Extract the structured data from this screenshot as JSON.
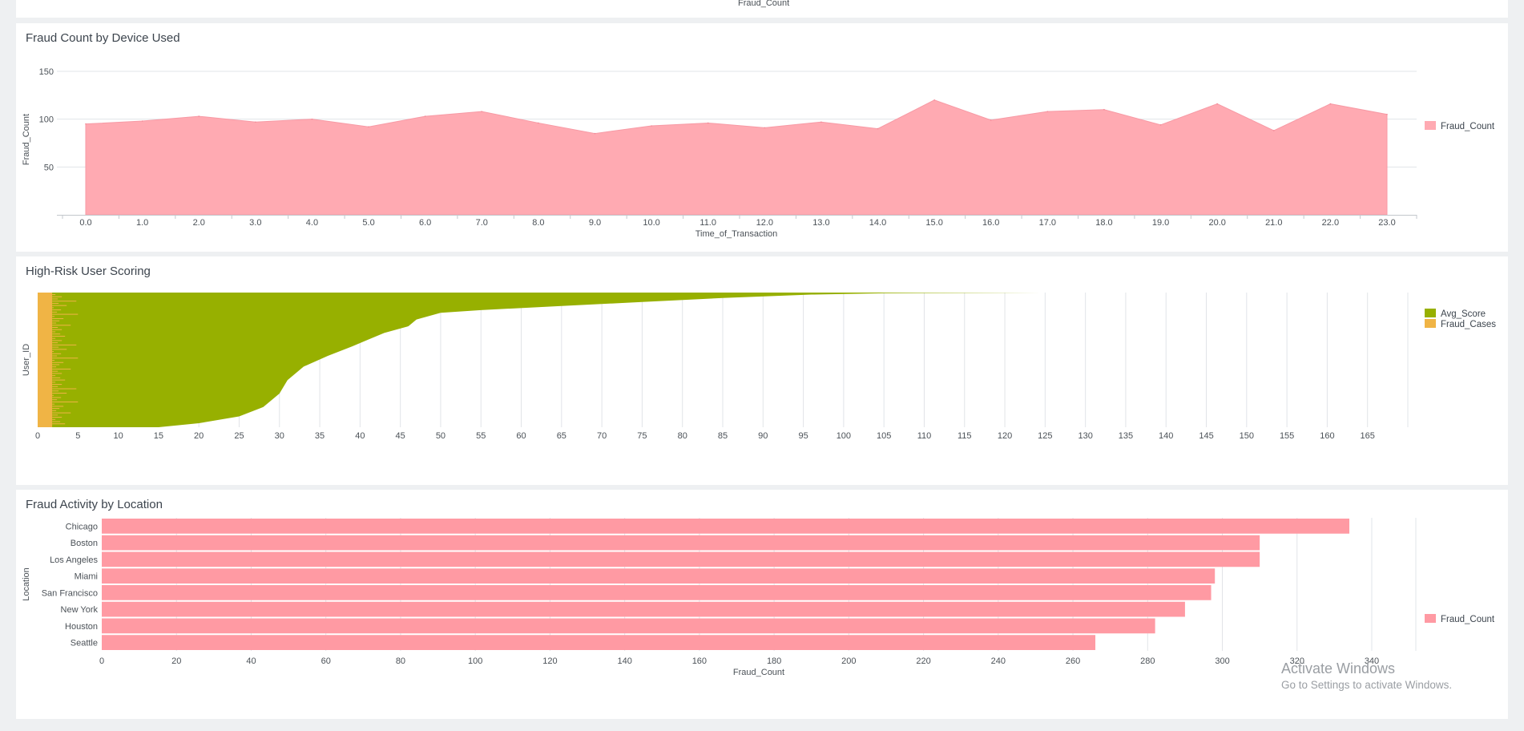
{
  "top_fragment": {
    "axis_label": "Fraud_Count"
  },
  "panels": [
    {
      "title": "Fraud Count by Device Used",
      "chart_data": {
        "type": "area",
        "title": "Fraud Count by Device Used",
        "xlabel": "Time_of_Transaction",
        "ylabel": "Fraud_Count",
        "x": [
          0,
          1,
          2,
          3,
          4,
          5,
          6,
          7,
          8,
          9,
          10,
          11,
          12,
          13,
          14,
          15,
          16,
          17,
          18,
          19,
          20,
          21,
          22,
          23
        ],
        "x_tick_labels": [
          "0.0",
          "1.0",
          "2.0",
          "3.0",
          "4.0",
          "5.0",
          "6.0",
          "7.0",
          "8.0",
          "9.0",
          "10.0",
          "11.0",
          "12.0",
          "13.0",
          "14.0",
          "15.0",
          "16.0",
          "17.0",
          "18.0",
          "19.0",
          "20.0",
          "21.0",
          "22.0",
          "23.0"
        ],
        "series": [
          {
            "name": "Fraud_Count",
            "color": "#ffaab2",
            "values": [
              95,
              98,
              103,
              97,
              100,
              92,
              103,
              108,
              96,
              85,
              93,
              96,
              91,
              97,
              90,
              120,
              99,
              108,
              110,
              94,
              116,
              88,
              116,
              105
            ]
          }
        ],
        "ylim": [
          0,
          150
        ],
        "y_ticks": [
          50,
          100,
          150
        ],
        "grid": true,
        "legend": "right"
      }
    },
    {
      "title": "High-Risk User Scoring",
      "chart_data": {
        "type": "bar",
        "orientation": "horizontal",
        "stacked": true,
        "title": "High-Risk User Scoring",
        "xlabel": "",
        "ylabel": "User_ID",
        "xlim": [
          0,
          170
        ],
        "x_ticks": [
          0,
          5,
          10,
          15,
          20,
          25,
          30,
          35,
          40,
          45,
          50,
          55,
          60,
          65,
          70,
          75,
          80,
          85,
          90,
          95,
          100,
          105,
          110,
          115,
          120,
          125,
          130,
          135,
          140,
          145,
          150,
          155,
          160,
          165
        ],
        "series": [
          {
            "name": "Fraud_Cases",
            "color": "#f0b445"
          },
          {
            "name": "Avg_Score",
            "color": "#97b000"
          }
        ],
        "note_curve": [
          [
            0,
            124.5
          ],
          [
            0.005,
            105
          ],
          [
            0.015,
            96
          ],
          [
            0.04,
            85
          ],
          [
            0.07,
            75
          ],
          [
            0.1,
            65
          ],
          [
            0.13,
            55
          ],
          [
            0.15,
            50
          ],
          [
            0.2,
            47
          ],
          [
            0.25,
            46
          ],
          [
            0.3,
            43
          ],
          [
            0.35,
            41
          ],
          [
            0.4,
            39
          ],
          [
            0.47,
            36
          ],
          [
            0.55,
            33
          ],
          [
            0.65,
            31
          ],
          [
            0.75,
            30
          ],
          [
            0.85,
            28
          ],
          [
            0.92,
            25
          ],
          [
            0.97,
            20
          ],
          [
            1.0,
            15
          ]
        ],
        "grid": true,
        "legend": "right"
      }
    },
    {
      "title": "Fraud Activity by Location",
      "chart_data": {
        "type": "bar",
        "orientation": "horizontal",
        "title": "Fraud Activity by Location",
        "xlabel": "Fraud_Count",
        "ylabel": "Location",
        "categories": [
          "Chicago",
          "Boston",
          "Los Angeles",
          "Miami",
          "San Francisco",
          "New York",
          "Houston",
          "Seattle"
        ],
        "series": [
          {
            "name": "Fraud_Count",
            "color": "#ff9aa3",
            "values": [
              334,
              310,
              310,
              298,
              297,
              290,
              282,
              266
            ]
          }
        ],
        "xlim": [
          0,
          360
        ],
        "x_ticks": [
          0,
          20,
          40,
          60,
          80,
          100,
          120,
          140,
          160,
          180,
          200,
          220,
          240,
          260,
          280,
          300,
          320,
          340
        ],
        "grid": true,
        "legend": "right"
      }
    }
  ],
  "watermark": {
    "line1": "Activate Windows",
    "line2": "Go to Settings to activate Windows."
  }
}
